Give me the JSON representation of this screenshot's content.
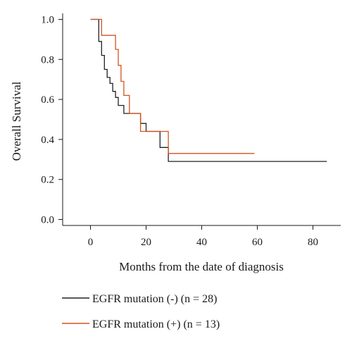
{
  "chart_data": {
    "type": "line",
    "step": true,
    "xlabel": "Months from the date of diagnosis",
    "ylabel": "Overall Survival",
    "xlim": [
      -10,
      90
    ],
    "ylim": [
      -0.03,
      1.03
    ],
    "xticks": [
      0,
      20,
      40,
      60,
      80
    ],
    "yticks": [
      0.0,
      0.2,
      0.4,
      0.6,
      0.8,
      1.0
    ],
    "ytick_labels": [
      "0.0",
      "0.2",
      "0.4",
      "0.6",
      "0.8",
      "1.0"
    ],
    "grid": false,
    "legend_position": "bottom",
    "series": [
      {
        "name": "EGFR mutation (-) (n = 28)",
        "color": "#222222",
        "x": [
          0,
          2.5,
          3,
          4,
          5,
          6,
          7,
          8,
          9,
          10,
          12,
          15,
          18,
          20,
          25,
          28,
          85
        ],
        "y": [
          1.0,
          1.0,
          0.89,
          0.82,
          0.75,
          0.71,
          0.68,
          0.64,
          0.61,
          0.57,
          0.53,
          0.53,
          0.48,
          0.44,
          0.36,
          0.29,
          0.29
        ]
      },
      {
        "name": "EGFR mutation (+) (n = 13)",
        "color": "#d4521c",
        "x": [
          0,
          3,
          4,
          9,
          10,
          11,
          12,
          14,
          18,
          20,
          28,
          59
        ],
        "y": [
          1.0,
          1.0,
          0.92,
          0.85,
          0.77,
          0.69,
          0.62,
          0.53,
          0.44,
          0.44,
          0.33,
          0.33
        ]
      }
    ]
  }
}
